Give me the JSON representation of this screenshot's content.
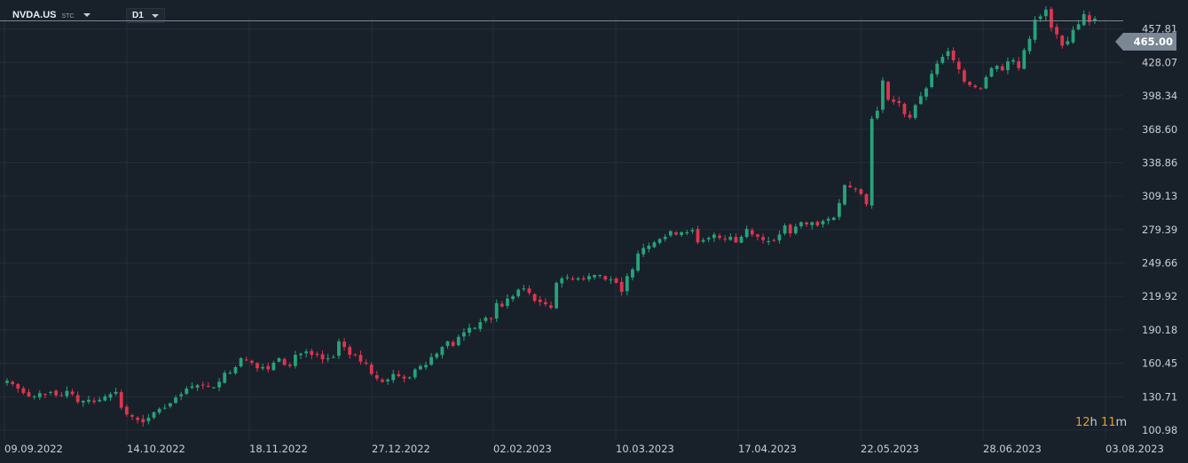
{
  "toolbar": {
    "symbol": "NVDA.US",
    "symbol_suffix": "STC",
    "timeframe": "D1"
  },
  "last_price_label": "465.00",
  "countdown": {
    "hours": "12",
    "hours_unit": "h",
    "minutes": "11",
    "minutes_unit": "m"
  },
  "colors": {
    "background": "#18202a",
    "grid": "#232d38",
    "up": "#26a37a",
    "down": "#e0344e",
    "price_line": "#7a8794"
  },
  "chart_data": {
    "type": "candlestick",
    "symbol": "NVDA.US",
    "timeframe": "D1",
    "y_ticks": [
      "100.98",
      "130.71",
      "160.45",
      "190.18",
      "219.92",
      "249.66",
      "279.39",
      "309.13",
      "338.86",
      "368.60",
      "398.34",
      "428.07",
      "457.81"
    ],
    "ylim": [
      100.98,
      465.0
    ],
    "x_ticks": [
      "09.09.2022",
      "14.10.2022",
      "18.11.2022",
      "27.12.2022",
      "02.02.2023",
      "10.03.2023",
      "17.04.2023",
      "22.05.2023",
      "28.06.2023",
      "03.08.2023"
    ],
    "last_price": 465.0,
    "grid": true,
    "close_series": [
      145,
      142,
      138,
      134,
      131,
      131,
      134,
      133,
      135,
      132,
      132,
      136,
      133,
      126,
      127,
      128,
      126,
      128,
      131,
      133,
      135,
      121,
      115,
      113,
      110,
      108,
      112,
      117,
      120,
      121,
      125,
      130,
      133,
      138,
      140,
      141,
      141,
      140,
      139,
      144,
      152,
      152,
      157,
      165,
      163,
      161,
      156,
      157,
      155,
      161,
      165,
      159,
      158,
      168,
      169,
      171,
      168,
      168,
      164,
      165,
      166,
      180,
      175,
      168,
      168,
      162,
      160,
      151,
      147,
      144,
      146,
      151,
      149,
      147,
      148,
      155,
      158,
      159,
      166,
      169,
      175,
      180,
      176,
      184,
      188,
      192,
      192,
      197,
      201,
      200,
      214,
      211,
      218,
      220,
      226,
      227,
      223,
      216,
      215,
      213,
      210,
      232,
      236,
      237,
      235,
      236,
      235,
      238,
      239,
      239,
      235,
      235,
      232,
      224,
      238,
      244,
      258,
      263,
      265,
      268,
      271,
      273,
      278,
      275,
      277,
      277,
      279,
      268,
      270,
      272,
      275,
      272,
      271,
      273,
      268,
      273,
      280,
      275,
      273,
      270,
      269,
      270,
      275,
      283,
      276,
      282,
      286,
      284,
      286,
      283,
      287,
      289,
      290,
      303,
      319,
      317,
      315,
      311,
      302,
      378,
      385,
      412,
      395,
      393,
      392,
      382,
      379,
      390,
      398,
      405,
      418,
      427,
      433,
      438,
      430,
      422,
      411,
      408,
      406,
      405,
      415,
      423,
      425,
      421,
      429,
      430,
      423,
      439,
      449,
      466,
      469,
      475,
      459,
      453,
      443,
      447,
      457,
      462,
      471,
      464,
      467
    ]
  }
}
